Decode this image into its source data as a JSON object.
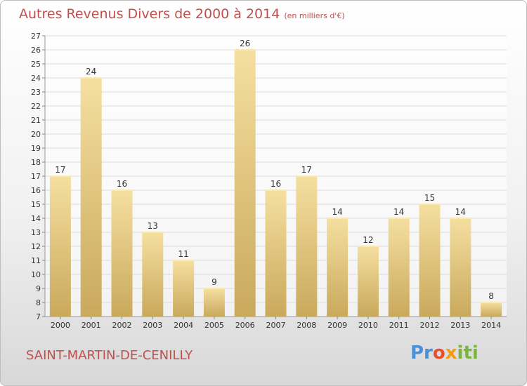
{
  "header": {
    "title": "Autres Revenus Divers de 2000 à 2014",
    "subtitle": "(en milliers d'€)"
  },
  "footer": {
    "city": "SAINT-MARTIN-DE-CENILLY",
    "logo_text": "Proxiti"
  },
  "colors": {
    "bar_top": "#f5dfa0",
    "bar_bottom": "#c9a95c",
    "title": "#c0504d",
    "grid": "#dcdcdc"
  },
  "chart_data": {
    "type": "bar",
    "title": "Autres Revenus Divers de 2000 à 2014",
    "subtitle": "(en milliers d'€)",
    "categories": [
      "2000",
      "2001",
      "2002",
      "2003",
      "2004",
      "2005",
      "2006",
      "2007",
      "2008",
      "2009",
      "2010",
      "2011",
      "2012",
      "2013",
      "2014"
    ],
    "values": [
      17,
      24,
      16,
      13,
      11,
      9,
      26,
      16,
      17,
      14,
      12,
      14,
      15,
      14,
      8
    ],
    "ylim": [
      7,
      27
    ],
    "yticks": [
      7,
      8,
      9,
      10,
      11,
      12,
      13,
      14,
      15,
      16,
      17,
      18,
      19,
      20,
      21,
      22,
      23,
      24,
      25,
      26,
      27
    ],
    "grid": true,
    "legend": "none",
    "xlabel": "",
    "ylabel": ""
  }
}
